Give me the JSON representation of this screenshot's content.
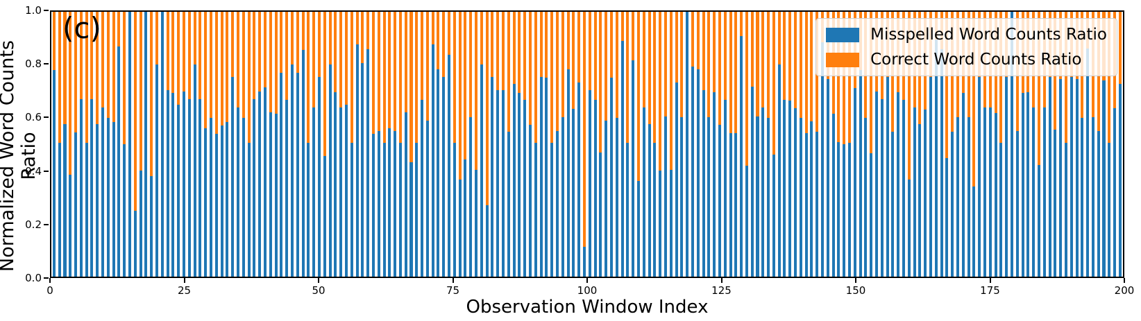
{
  "figure": {
    "panel_label": "(c)",
    "ylabel": "Normalized Word Counts Ratio",
    "xlabel": "Observation Window Index",
    "yticks": [
      "1.0",
      "0.8",
      "0.6",
      "0.4",
      "0.2",
      "0.0"
    ],
    "xticks": [
      "0",
      "25",
      "50",
      "75",
      "100",
      "125",
      "150",
      "175",
      "200"
    ]
  },
  "legend": {
    "position": "upper right",
    "items": [
      {
        "label": "Misspelled Word Counts Ratio",
        "color": "#1f77b4"
      },
      {
        "label": "Correct Word Counts Ratio",
        "color": "#ff7f0e"
      }
    ]
  },
  "colors": {
    "misspelled_blue": "#1f77b4",
    "correct_orange": "#ff7f0e",
    "axes": "#000000",
    "legend_border": "#cccccc"
  },
  "chart_data": {
    "type": "bar",
    "subtype": "stacked-normalized",
    "title": "",
    "xlabel": "Observation Window Index",
    "ylabel": "Normalized Word Counts Ratio",
    "xlim": [
      0,
      200
    ],
    "ylim": [
      0.0,
      1.0
    ],
    "grid": false,
    "legend_position": "upper right",
    "x_description": "one bar per observation window index, approx indices 1-198, values estimated from pixels",
    "series": [
      {
        "name": "Misspelled Word Counts Ratio",
        "color": "#1f77b4",
        "values": [
          0.78,
          0.505,
          0.575,
          0.385,
          0.545,
          0.67,
          0.505,
          0.67,
          0.575,
          0.64,
          0.6,
          0.585,
          0.87,
          0.5,
          1.0,
          0.25,
          0.4,
          1.0,
          0.38,
          0.8,
          1.0,
          0.705,
          0.695,
          0.65,
          0.7,
          0.67,
          0.8,
          0.67,
          0.56,
          0.6,
          0.54,
          0.57,
          0.585,
          0.755,
          0.64,
          0.6,
          0.505,
          0.67,
          0.7,
          0.715,
          0.62,
          0.615,
          0.77,
          0.668,
          0.8,
          0.77,
          0.855,
          0.505,
          0.64,
          0.753,
          0.455,
          0.8,
          0.696,
          0.64,
          0.649,
          0.505,
          0.877,
          0.806,
          0.858,
          0.538,
          0.55,
          0.505,
          0.561,
          0.549,
          0.504,
          0.62,
          0.433,
          0.505,
          0.668,
          0.589,
          0.877,
          0.784,
          0.755,
          0.838,
          0.504,
          0.366,
          0.443,
          0.602,
          0.402,
          0.801,
          0.27,
          0.755,
          0.704,
          0.704,
          0.547,
          0.729,
          0.694,
          0.668,
          0.573,
          0.504,
          0.755,
          0.751,
          0.504,
          0.549,
          0.602,
          0.784,
          0.634,
          0.732,
          0.113,
          0.703,
          0.667,
          0.469,
          0.589,
          0.751,
          0.6,
          0.891,
          0.504,
          0.818,
          0.36,
          0.639,
          0.575,
          0.504,
          0.4,
          0.604,
          0.404,
          0.733,
          0.603,
          1.0,
          0.794,
          0.784,
          0.704,
          0.602,
          0.696,
          0.573,
          0.667,
          0.542,
          0.542,
          0.908,
          0.419,
          0.717,
          0.604,
          0.639,
          0.6,
          0.46,
          0.8,
          0.667,
          0.664,
          0.637,
          0.6,
          0.542,
          0.586,
          0.547,
          0.886,
          0.746,
          0.616,
          0.509,
          0.5,
          0.504,
          0.713,
          0.78,
          0.6,
          0.465,
          0.7,
          0.67,
          0.755,
          0.547,
          0.696,
          0.667,
          0.367,
          0.639,
          0.575,
          0.63,
          0.755,
          0.895,
          0.858,
          0.448,
          0.547,
          0.602,
          0.694,
          0.603,
          0.34,
          0.753,
          0.638,
          0.638,
          0.618,
          0.504,
          0.755,
          1.0,
          0.549,
          0.694,
          0.696,
          0.638,
          0.422,
          0.638,
          0.755,
          0.556,
          0.746,
          0.506,
          0.755,
          0.746,
          0.599,
          0.86,
          0.603,
          0.549,
          0.742,
          0.504,
          0.636,
          0.729
        ]
      },
      {
        "name": "Correct Word Counts Ratio",
        "color": "#ff7f0e",
        "values_are_complement_of_series_0": true,
        "note": "each value equals 1.0 minus the Misspelled Word Counts Ratio value (stacks sum to 1.0)"
      }
    ]
  }
}
